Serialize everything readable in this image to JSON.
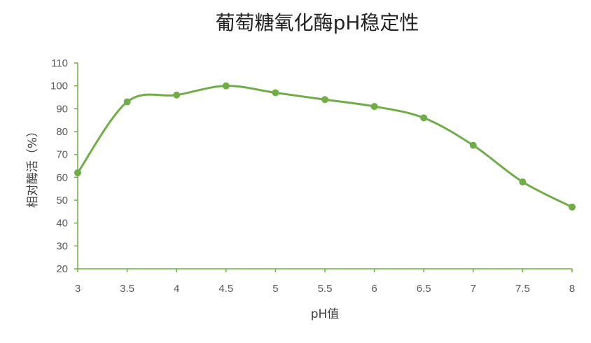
{
  "chart_data": {
    "type": "line",
    "title": "葡萄糖氧化酶pH稳定性",
    "xlabel": "pH值",
    "ylabel": "相对酶活（%）",
    "x": [
      3,
      3.5,
      4,
      4.5,
      5,
      5.5,
      6,
      6.5,
      7,
      7.5,
      8
    ],
    "x_tick_labels": [
      "3",
      "3.5",
      "4",
      "4.5",
      "5",
      "5.5",
      "6",
      "6.5",
      "7",
      "7.5",
      "8"
    ],
    "series": [
      {
        "values": [
          62,
          93,
          96,
          100,
          97,
          94,
          91,
          86,
          74,
          58,
          47
        ]
      }
    ],
    "ylim": [
      20,
      110
    ],
    "y_ticks": [
      20,
      30,
      40,
      50,
      60,
      70,
      80,
      90,
      100,
      110
    ],
    "grid": false,
    "legend": "none",
    "smooth": true,
    "line_color": "#70AD47",
    "axis_color": "#70AD47"
  }
}
